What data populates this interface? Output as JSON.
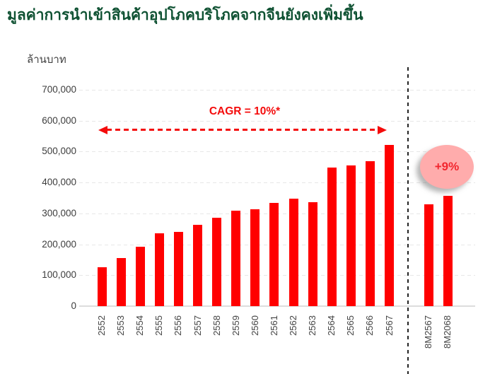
{
  "title": "มูลค่าการนำเข้าสินค้าอุปโภคบริโภคจากจีนยังคงเพิ่มขึ้น",
  "colors": {
    "title_green": "#0e5132",
    "bar_red": "#ff0000",
    "annotation_red": "#f40b0b",
    "badge_pink": "#ffacac",
    "separator_dark": "#242424",
    "grid_gray": "#e7e7e7",
    "axis_text": "#3d3d3d"
  },
  "chart_data": {
    "type": "bar",
    "title": "มูลค่าการนำเข้าสินค้าอุปโภคบริโภคจากจีนยังคงเพิ่มขึ้น",
    "ylabel": "ล้านบาท",
    "xlabel": "",
    "grid": "horizontal-dashed",
    "ylim": [
      0,
      700000
    ],
    "yticks_values": [
      700000,
      600000,
      500000,
      400000,
      300000,
      200000,
      100000,
      0
    ],
    "yticks_labels": [
      "700,000",
      "600,000",
      "500,000",
      "400,000",
      "300,000",
      "200,000",
      "100,000",
      "0"
    ],
    "categories": [
      "2552",
      "2553",
      "2554",
      "2555",
      "2556",
      "2557",
      "2558",
      "2559",
      "2560",
      "2561",
      "2562",
      "2563",
      "2564",
      "2565",
      "2566",
      "2567",
      "8M2567",
      "8M2068"
    ],
    "values": [
      125000,
      155000,
      193000,
      235000,
      240000,
      263000,
      287000,
      308000,
      314000,
      335000,
      348000,
      337000,
      448000,
      456000,
      468000,
      522000,
      330000,
      358000
    ],
    "separator_after_index": 15,
    "annotations": {
      "cagr_label": "CAGR = 10%*",
      "cagr_span_categories": [
        "2552",
        "2567"
      ],
      "growth_label": "+9%",
      "growth_applies_to": [
        "8M2567",
        "8M2068"
      ]
    },
    "legend": "none"
  }
}
